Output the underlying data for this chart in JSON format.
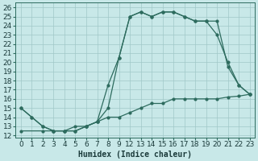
{
  "xlabel": "Humidex (Indice chaleur)",
  "bg_color": "#c8e8e8",
  "grid_color": "#a0c8c8",
  "line_color": "#2d6b5e",
  "xlim": [
    -0.5,
    21.5
  ],
  "ylim": [
    11.8,
    26.5
  ],
  "xtick_positions": [
    0,
    1,
    2,
    3,
    4,
    5,
    6,
    7,
    8,
    9,
    10,
    11,
    12,
    13,
    14,
    15,
    16,
    17,
    18,
    19,
    20,
    21
  ],
  "xtick_labels": [
    "0",
    "1",
    "2",
    "3",
    "4",
    "5",
    "6",
    "7",
    "8",
    "9",
    "12",
    "13",
    "14",
    "15",
    "16",
    "17",
    "18",
    "19",
    "20",
    "21",
    "22",
    "23"
  ],
  "yticks": [
    12,
    13,
    14,
    15,
    16,
    17,
    18,
    19,
    20,
    21,
    22,
    23,
    24,
    25,
    26
  ],
  "line1_x": [
    0,
    1,
    2,
    3,
    4,
    5,
    6,
    7,
    8,
    9,
    10,
    11,
    12,
    13,
    14,
    15,
    16,
    17,
    18,
    19,
    20,
    21
  ],
  "line1_y": [
    15,
    14,
    13,
    12.5,
    12.5,
    12.5,
    13,
    13.5,
    15,
    20.5,
    25,
    25.5,
    25,
    25.5,
    25.5,
    25,
    24.5,
    24.5,
    24.5,
    19.5,
    17.5,
    16.5
  ],
  "line2_x": [
    0,
    1,
    2,
    3,
    4,
    5,
    6,
    7,
    8,
    9,
    10,
    11,
    12,
    13,
    14,
    15,
    16,
    17,
    18,
    19,
    20,
    21
  ],
  "line2_y": [
    15,
    14,
    13,
    12.5,
    12.5,
    12.5,
    13,
    13.5,
    17.5,
    20.5,
    25,
    25.5,
    25,
    25.5,
    25.5,
    25,
    24.5,
    24.5,
    23,
    20,
    17.5,
    16.5
  ],
  "line3_x": [
    0,
    2,
    3,
    4,
    5,
    6,
    7,
    8,
    9,
    10,
    11,
    12,
    13,
    14,
    15,
    16,
    17,
    18,
    19,
    20,
    21
  ],
  "line3_y": [
    12.5,
    12.5,
    12.5,
    12.5,
    13,
    13,
    13.5,
    14,
    14,
    14.5,
    15,
    15.5,
    15.5,
    16,
    16,
    16,
    16,
    16,
    16.2,
    16.3,
    16.5
  ],
  "font_size": 6.5,
  "marker_size": 2.0,
  "line_width": 0.9
}
